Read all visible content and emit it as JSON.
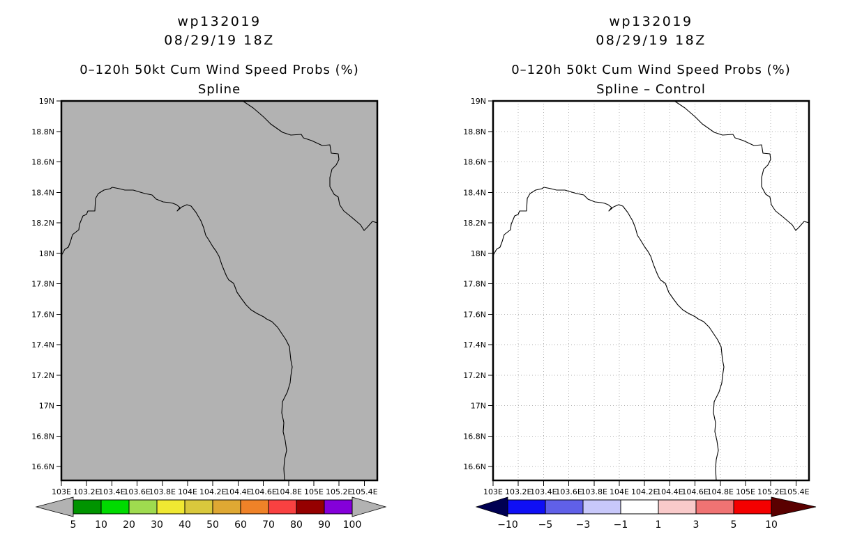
{
  "figure": {
    "background": "#ffffff",
    "line_color": "#000000",
    "grid_color": "#b0b0b0"
  },
  "panels": [
    {
      "titles": {
        "line1": "wp132019",
        "line2": "08/29/19 18Z",
        "line3": "0–120h 50kt Cum Wind Speed Probs (%)",
        "line4": "Spline"
      },
      "map": {
        "fill": "#b2b2b2",
        "grid": false
      },
      "colorbar": {
        "labels": [
          "5",
          "10",
          "20",
          "30",
          "40",
          "50",
          "60",
          "70",
          "80",
          "90",
          "100"
        ],
        "colors": [
          "#009400",
          "#00db00",
          "#9fdb4f",
          "#f0e832",
          "#d9c83c",
          "#dfa833",
          "#ef8228",
          "#f94141",
          "#950000",
          "#8400d9"
        ],
        "left_arrow": "#b2b2b2",
        "right_arrow": "#b2b2b2"
      }
    },
    {
      "titles": {
        "line1": "wp132019",
        "line2": "08/29/19 18Z",
        "line3": "0–120h 50kt Cum Wind Speed Probs (%)",
        "line4": "Spline – Control"
      },
      "map": {
        "fill": "#ffffff",
        "grid": true
      },
      "colorbar": {
        "labels": [
          "−10",
          "−5",
          "−3",
          "−1",
          "1",
          "3",
          "5",
          "10"
        ],
        "colors": [
          "#0f0ff5",
          "#6060e8",
          "#c8c8fa",
          "#ffffff",
          "#f9caca",
          "#f07373",
          "#f40000"
        ],
        "left_arrow": "#000052",
        "right_arrow": "#5a0000"
      }
    }
  ],
  "axes": {
    "lon_labels": [
      "103E",
      "103.2E",
      "103.4E",
      "103.6E",
      "103.8E",
      "104E",
      "104.2E",
      "104.4E",
      "104.6E",
      "104.8E",
      "105E",
      "105.2E",
      "105.4E"
    ],
    "lat_labels": [
      "19N",
      "18.8N",
      "18.6N",
      "18.4N",
      "18.2N",
      "18N",
      "17.8N",
      "17.6N",
      "17.4N",
      "17.2N",
      "17N",
      "16.8N",
      "16.6N"
    ]
  },
  "coastlines": {
    "a": [
      [
        260,
        0
      ],
      [
        275,
        10
      ],
      [
        290,
        23
      ],
      [
        300,
        33
      ],
      [
        317,
        45
      ],
      [
        329,
        49
      ],
      [
        344,
        48
      ],
      [
        347,
        53
      ],
      [
        359,
        57
      ],
      [
        374,
        64
      ],
      [
        385,
        63
      ],
      [
        387,
        75
      ],
      [
        397,
        76
      ],
      [
        398,
        84
      ],
      [
        394,
        92
      ],
      [
        388,
        98
      ],
      [
        385,
        110
      ],
      [
        385,
        123
      ],
      [
        391,
        134
      ],
      [
        397,
        138
      ],
      [
        399,
        149
      ],
      [
        405,
        158
      ],
      [
        415,
        166
      ],
      [
        422,
        172
      ],
      [
        429,
        178
      ],
      [
        434,
        186
      ],
      [
        439,
        181
      ],
      [
        446,
        173
      ],
      [
        453,
        175
      ]
    ],
    "b": [
      [
        0,
        222
      ],
      [
        5,
        213
      ],
      [
        10,
        210
      ],
      [
        13,
        202
      ],
      [
        16,
        192
      ],
      [
        25,
        185
      ],
      [
        26,
        177
      ],
      [
        31,
        165
      ],
      [
        36,
        163
      ],
      [
        38,
        158
      ],
      [
        48,
        158
      ],
      [
        49,
        140
      ],
      [
        53,
        133
      ],
      [
        61,
        128
      ],
      [
        70,
        126
      ],
      [
        73,
        124
      ],
      [
        83,
        126
      ],
      [
        91,
        128
      ],
      [
        103,
        128
      ],
      [
        113,
        131
      ],
      [
        120,
        133
      ],
      [
        130,
        135
      ],
      [
        136,
        141
      ],
      [
        146,
        145
      ],
      [
        155,
        146
      ],
      [
        160,
        147
      ],
      [
        165,
        149
      ],
      [
        170,
        153
      ],
      [
        166,
        158
      ],
      [
        173,
        152
      ],
      [
        180,
        149
      ],
      [
        186,
        151
      ],
      [
        193,
        160
      ],
      [
        200,
        172
      ],
      [
        204,
        182
      ],
      [
        207,
        193
      ],
      [
        211,
        199
      ],
      [
        217,
        209
      ],
      [
        222,
        216
      ],
      [
        226,
        223
      ],
      [
        230,
        235
      ],
      [
        234,
        245
      ],
      [
        237,
        252
      ],
      [
        240,
        257
      ],
      [
        247,
        262
      ],
      [
        252,
        275
      ],
      [
        259,
        285
      ],
      [
        265,
        293
      ],
      [
        272,
        300
      ],
      [
        280,
        305
      ],
      [
        290,
        310
      ],
      [
        294,
        313
      ],
      [
        302,
        317
      ],
      [
        310,
        325
      ],
      [
        322,
        343
      ],
      [
        327,
        353
      ],
      [
        329,
        372
      ],
      [
        331,
        382
      ],
      [
        329,
        395
      ],
      [
        328,
        405
      ],
      [
        324,
        418
      ],
      [
        317,
        432
      ],
      [
        316,
        448
      ],
      [
        319,
        462
      ],
      [
        318,
        475
      ],
      [
        321,
        488
      ],
      [
        323,
        502
      ],
      [
        320,
        515
      ],
      [
        319,
        528
      ],
      [
        320,
        545
      ]
    ]
  },
  "chart_data": [
    {
      "type": "map-shaded-contour",
      "title": "wp132019 | 08/29/19 18Z | 0–120h 50kt Cum Wind Speed Probs (%) | Spline",
      "xlabel_ticks": [
        "103E",
        "103.2E",
        "103.4E",
        "103.6E",
        "103.8E",
        "104E",
        "104.2E",
        "104.4E",
        "104.6E",
        "104.8E",
        "105E",
        "105.2E",
        "105.4E"
      ],
      "ylabel_ticks": [
        "16.6N",
        "16.8N",
        "17N",
        "17.2N",
        "17.4N",
        "17.6N",
        "17.8N",
        "18N",
        "18.2N",
        "18.4N",
        "18.6N",
        "18.8N",
        "19N"
      ],
      "xlim": [
        103.0,
        105.5
      ],
      "ylim": [
        16.54,
        19.0
      ],
      "grid": false,
      "legend_position": "bottom colorbar",
      "colorbar_levels": [
        5,
        10,
        20,
        30,
        40,
        50,
        60,
        70,
        80,
        90,
        100
      ],
      "colorbar_colors": [
        "#009400",
        "#00db00",
        "#9fdb4f",
        "#f0e832",
        "#d9c83c",
        "#dfa833",
        "#ef8228",
        "#f94141",
        "#950000",
        "#8400d9"
      ],
      "field": "uniform value below 5% everywhere (entire map shaded background gray, no contours)"
    },
    {
      "type": "map-shaded-contour",
      "title": "wp132019 | 08/29/19 18Z | 0–120h 50kt Cum Wind Speed Probs (%) | Spline – Control",
      "xlabel_ticks": [
        "103E",
        "103.2E",
        "103.4E",
        "103.6E",
        "103.8E",
        "104E",
        "104.2E",
        "104.4E",
        "104.6E",
        "104.8E",
        "105E",
        "105.2E",
        "105.4E"
      ],
      "ylabel_ticks": [
        "16.6N",
        "16.8N",
        "17N",
        "17.2N",
        "17.4N",
        "17.6N",
        "17.8N",
        "18N",
        "18.2N",
        "18.4N",
        "18.6N",
        "18.8N",
        "19N"
      ],
      "xlim": [
        103.0,
        105.5
      ],
      "ylim": [
        16.54,
        19.0
      ],
      "grid": true,
      "legend_position": "bottom colorbar",
      "colorbar_levels": [
        -10,
        -5,
        -3,
        -1,
        1,
        3,
        5,
        10
      ],
      "colorbar_colors": [
        "#0f0ff5",
        "#6060e8",
        "#c8c8fa",
        "#ffffff",
        "#f9caca",
        "#f07373",
        "#f40000"
      ],
      "field": "uniform difference between -1 and 1 everywhere (entire map white, no contours)"
    }
  ]
}
